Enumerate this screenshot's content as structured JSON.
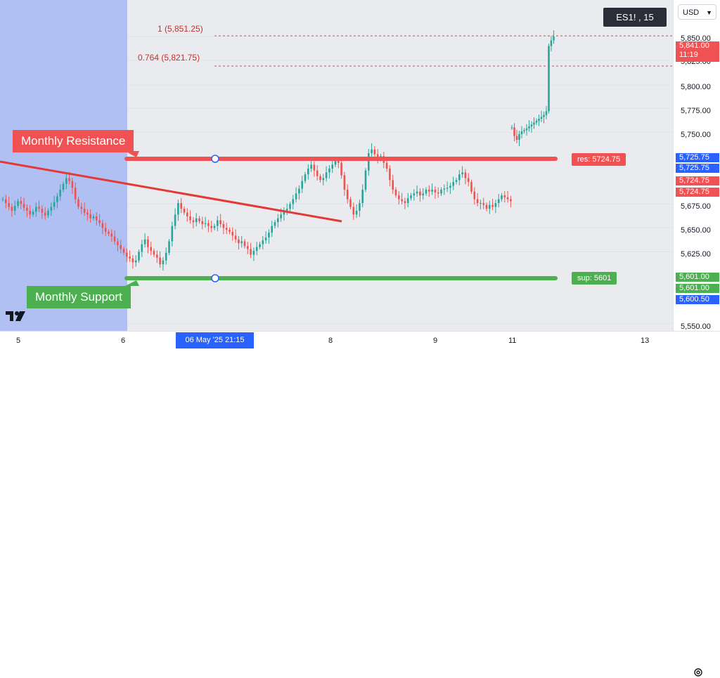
{
  "toolbar": {
    "currency": "USD",
    "symbol": "ES1! , 15"
  },
  "colors": {
    "resistance": "#f05253",
    "support": "#4caf50",
    "highlight": "#2962ff",
    "fib": "#c62f2f",
    "up_candle": "#26a69a",
    "down_candle": "#ef5350"
  },
  "annotations": {
    "fib_1": "1 (5,851.25)",
    "fib_0764": "0.764 (5,821.75)",
    "resistance_callout": "Monthly Resistance",
    "support_callout": "Monthly Support",
    "resistance_label": "res: 5724.75",
    "support_label": "sup: 5601"
  },
  "price_axis": {
    "ticks": [
      "5,850.00",
      "5,825.00",
      "5,800.00",
      "5,775.00",
      "5,750.00",
      "5,675.00",
      "5,650.00",
      "5,625.00",
      "5,550.00"
    ],
    "tags": {
      "last_price": "5,841.00",
      "countdown": "11:19",
      "blue_a": "5,725.75",
      "blue_b": "5,725.75",
      "red_a": "5,724.75",
      "red_b": "5,724.75",
      "green_a": "5,601.00",
      "green_b": "5,601.00",
      "blue_c": "5,600.50"
    }
  },
  "time_axis": {
    "ticks": [
      "5",
      "6",
      "8",
      "9",
      "11",
      "13"
    ],
    "cursor": "06 May '25   21:15"
  },
  "chart_data": {
    "type": "candlestick",
    "title": "ES1! , 15",
    "ylim": [
      5540,
      5875
    ],
    "y_ticks": [
      5550,
      5625,
      5650,
      5675,
      5750,
      5775,
      5800,
      5825,
      5850
    ],
    "x_ticks": [
      "5",
      "6",
      "8",
      "9",
      "11",
      "13"
    ],
    "resistance": 5724.75,
    "support": 5601,
    "fib_levels": [
      {
        "label": "1",
        "value": 5851.25
      },
      {
        "label": "0.764",
        "value": 5821.75
      }
    ],
    "last_price": 5841.0,
    "series": [
      {
        "values": [
          5680,
          5676,
          5672,
          5668,
          5673,
          5678,
          5675,
          5671,
          5668,
          5664,
          5667,
          5672,
          5670,
          5666,
          5663,
          5668,
          5672,
          5677,
          5683,
          5690,
          5696,
          5702,
          5699,
          5692,
          5680,
          5672,
          5670,
          5666,
          5664,
          5660,
          5662,
          5658,
          5655,
          5650,
          5646,
          5644,
          5641,
          5636,
          5632,
          5628,
          5624,
          5620,
          5618,
          5614,
          5616,
          5625,
          5633,
          5638,
          5630,
          5626,
          5622,
          5619,
          5612,
          5616,
          5624,
          5636,
          5652,
          5664,
          5676,
          5670,
          5666,
          5662,
          5658,
          5656,
          5660,
          5657,
          5654,
          5655,
          5652,
          5650,
          5652,
          5658,
          5654,
          5650,
          5648,
          5646,
          5642,
          5638,
          5634,
          5636,
          5631,
          5628,
          5622,
          5626,
          5630,
          5633,
          5637,
          5640,
          5645,
          5652,
          5656,
          5660,
          5664,
          5668,
          5670,
          5675,
          5680,
          5686,
          5691,
          5699,
          5706,
          5712,
          5716,
          5710,
          5704,
          5700,
          5702,
          5708,
          5712,
          5716,
          5720,
          5718,
          5705,
          5690,
          5680,
          5672,
          5664,
          5668,
          5676,
          5690,
          5710,
          5728,
          5732,
          5727,
          5722,
          5725,
          5718,
          5712,
          5700,
          5690,
          5684,
          5680,
          5678,
          5676,
          5681,
          5684,
          5686,
          5688,
          5684,
          5686,
          5690,
          5688,
          5690,
          5687,
          5686,
          5690,
          5691,
          5692,
          5694,
          5698,
          5700,
          5706,
          5708,
          5702,
          5698,
          5688,
          5680,
          5676,
          5676,
          5674,
          5670,
          5674,
          5672,
          5676,
          5680,
          5684,
          5682,
          5680,
          5678
        ]
      },
      {
        "values": [
          5755,
          5746,
          5742,
          5748,
          5751,
          5752,
          5754,
          5756,
          5758,
          5760,
          5762,
          5764,
          5766,
          5768,
          5772,
          5840,
          5846,
          5850
        ]
      }
    ]
  }
}
